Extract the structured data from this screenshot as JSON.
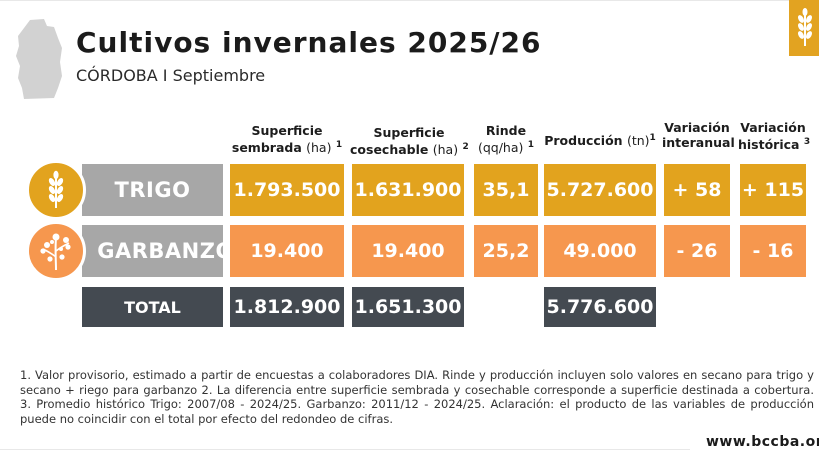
{
  "header": {
    "title": "Cultivos invernales 2025/26",
    "subtitle": "CÓRDOBA I Septiembre"
  },
  "columns": {
    "sembrada": {
      "line1": "Superficie",
      "line2": "sembrada",
      "unit": "(ha)",
      "sup": "1"
    },
    "cosechable": {
      "line1": "Superficie",
      "line2": "cosechable",
      "unit": "(ha)",
      "sup": "2"
    },
    "rinde": {
      "line1": "Rinde",
      "unit": "(qq/ha)",
      "sup": "1"
    },
    "produccion": {
      "line1": "Producción",
      "unit": "(tn)",
      "sup": "1"
    },
    "interanual": {
      "line1": "Variación",
      "line2": "interanual"
    },
    "historica": {
      "line1": "Variación",
      "line2": "histórica",
      "sup": "3"
    }
  },
  "rows": {
    "trigo": {
      "name": "TRIGO",
      "sembrada": "1.793.500",
      "cosechable": "1.631.900",
      "rinde": "35,1",
      "produccion": "5.727.600",
      "interanual": "+ 58",
      "historica": "+ 115"
    },
    "garbanzo": {
      "name": "GARBANZO",
      "sembrada": "19.400",
      "cosechable": "19.400",
      "rinde": "25,2",
      "produccion": "49.000",
      "interanual": "- 26",
      "historica": "- 16"
    },
    "total": {
      "name": "TOTAL",
      "sembrada": "1.812.900",
      "cosechable": "1.651.300",
      "produccion": "5.776.600"
    }
  },
  "footnote": "1. Valor provisorio, estimado a partir de encuestas a colaboradores DIA. Rinde y producción incluyen solo valores en secano para trigo y secano + riego para garbanzo 2. La diferencia entre superficie sembrada y cosechable corresponde a superficie destinada a cobertura. 3. Promedio histórico Trigo: 2007/08 - 2024/25. Garbanzo: 2011/12 - 2024/25. Aclaración: el producto de las variables de producción puede no coincidir con el total por efecto del redondeo de cifras.",
  "website": "www.bccba.org.",
  "colors": {
    "trigo": "#e2a31e",
    "garbanzo": "#f6974e",
    "total": "#444a51",
    "label_gray": "#a7a7a7"
  },
  "icons": {
    "map": "cordoba-map-icon",
    "brand": "wheat-icon",
    "trigo": "wheat-icon",
    "garbanzo": "chickpea-plant-icon"
  }
}
